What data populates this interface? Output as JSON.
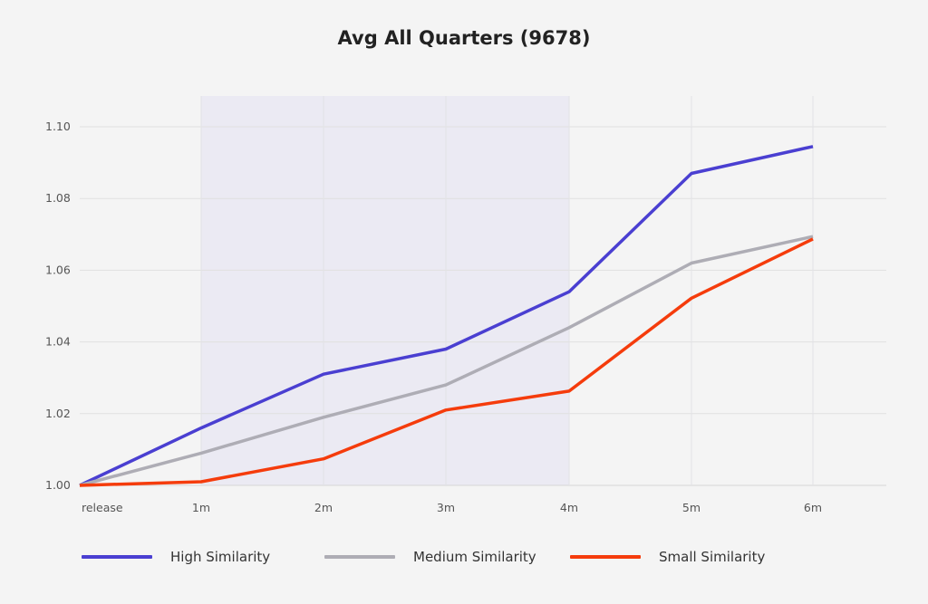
{
  "chart_data": {
    "type": "line",
    "title": "Avg All Quarters (9678)",
    "xlabel": "",
    "ylabel": "",
    "categories": [
      "release",
      "1m",
      "2m",
      "3m",
      "4m",
      "5m",
      "6m"
    ],
    "ylim": [
      1.0,
      1.1
    ],
    "yticks": [
      "1.00",
      "1.02",
      "1.04",
      "1.06",
      "1.08",
      "1.10"
    ],
    "grid": true,
    "shaded_range": [
      "1m",
      "4m"
    ],
    "legend_position": "bottom",
    "series": [
      {
        "name": "High Similarity",
        "color": "#4a3fd1",
        "values": [
          1.0,
          1.016,
          1.031,
          1.038,
          1.054,
          1.087,
          1.0945
        ]
      },
      {
        "name": "Medium Similarity",
        "color": "#aeadb5",
        "values": [
          1.0,
          1.009,
          1.019,
          1.028,
          1.044,
          1.062,
          1.0694
        ]
      },
      {
        "name": "Small Similarity",
        "color": "#f53c0c",
        "values": [
          1.0,
          1.001,
          1.0074,
          1.021,
          1.0263,
          1.0522,
          1.0687
        ]
      }
    ]
  }
}
